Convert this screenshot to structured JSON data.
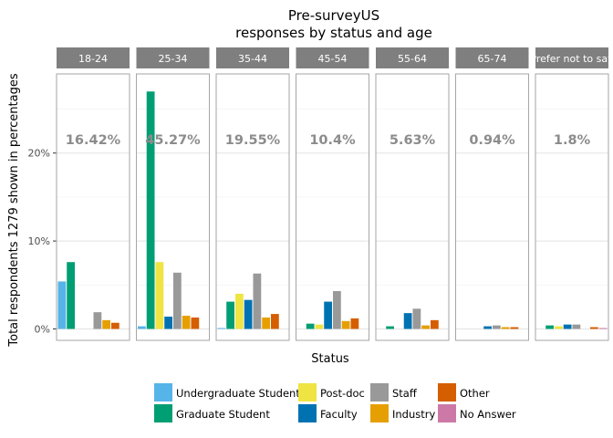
{
  "chart_data": {
    "type": "bar",
    "title": "Pre-surveyUS",
    "subtitle": "responses by status and age",
    "xlabel": "Status",
    "ylabel": "Total respondents 1279 shown in percentages",
    "ylim": [
      -1.3,
      29
    ],
    "y_ticks": [
      0,
      10,
      20
    ],
    "y_tick_labels": [
      "0%",
      "10%",
      "20%"
    ],
    "grid": true,
    "legend_position": "bottom",
    "categories": [
      "Undergraduate Student",
      "Graduate Student",
      "Post-doc",
      "Faculty",
      "Staff",
      "Industry",
      "Other",
      "No Answer"
    ],
    "colors": {
      "Undergraduate Student": "#56B4E9",
      "Graduate Student": "#009E73",
      "Post-doc": "#F0E442",
      "Faculty": "#0072B2",
      "Staff": "#999999",
      "Industry": "#E69F00",
      "Other": "#D55E00",
      "No Answer": "#CC79A7"
    },
    "panels": [
      {
        "label": "18-24",
        "annotation": "16.42%",
        "values": {
          "Undergraduate Student": 5.4,
          "Graduate Student": 7.6,
          "Staff": 1.9,
          "Industry": 1.0,
          "Other": 0.7
        }
      },
      {
        "label": "25-34",
        "annotation": "45.27%",
        "values": {
          "Undergraduate Student": 0.3,
          "Graduate Student": 27.0,
          "Post-doc": 7.6,
          "Faculty": 1.4,
          "Staff": 6.4,
          "Industry": 1.5,
          "Other": 1.3
        }
      },
      {
        "label": "35-44",
        "annotation": "19.55%",
        "values": {
          "Undergraduate Student": 0.1,
          "Graduate Student": 3.1,
          "Post-doc": 4.0,
          "Faculty": 3.3,
          "Staff": 6.3,
          "Industry": 1.3,
          "Other": 1.7
        }
      },
      {
        "label": "45-54",
        "annotation": "10.4%",
        "values": {
          "Graduate Student": 0.6,
          "Post-doc": 0.5,
          "Faculty": 3.1,
          "Staff": 4.3,
          "Industry": 0.9,
          "Other": 1.2
        }
      },
      {
        "label": "55-64",
        "annotation": "5.63%",
        "values": {
          "Graduate Student": 0.3,
          "Faculty": 1.8,
          "Staff": 2.3,
          "Industry": 0.4,
          "Other": 1.0
        }
      },
      {
        "label": "65-74",
        "annotation": "0.94%",
        "values": {
          "Faculty": 0.3,
          "Staff": 0.4,
          "Industry": 0.2,
          "Other": 0.2
        }
      },
      {
        "label": "Prefer not to say",
        "annotation": "1.8%",
        "values": {
          "Graduate Student": 0.4,
          "Post-doc": 0.3,
          "Faculty": 0.5,
          "Staff": 0.5,
          "Other": 0.2,
          "No Answer": 0.1
        }
      }
    ]
  }
}
